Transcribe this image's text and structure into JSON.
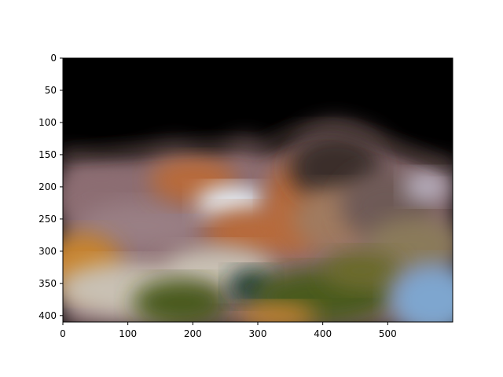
{
  "chart_data": {
    "type": "heatmap",
    "title": "",
    "xlabel": "",
    "ylabel": "",
    "xlim": [
      0,
      600
    ],
    "ylim": [
      410,
      0
    ],
    "y_inverted": true,
    "grid": false,
    "x_ticks": [
      0,
      100,
      200,
      300,
      400,
      500
    ],
    "y_ticks": [
      0,
      50,
      100,
      150,
      200,
      250,
      300,
      350,
      400
    ],
    "image": {
      "description_free": true,
      "colors": {
        "sky": "#000000",
        "ridge_dark": "#3a2e2c",
        "rock_rust": "#b86a3a",
        "rock_mauve": "#8c6d72",
        "snow": "#e8f0f6",
        "pale_rock": "#c9c1b4",
        "ochre": "#c8842e",
        "foliage_green": "#4a5a1e",
        "dark_teal": "#1e3a36",
        "water_blue": "#7ea6cf"
      }
    }
  }
}
